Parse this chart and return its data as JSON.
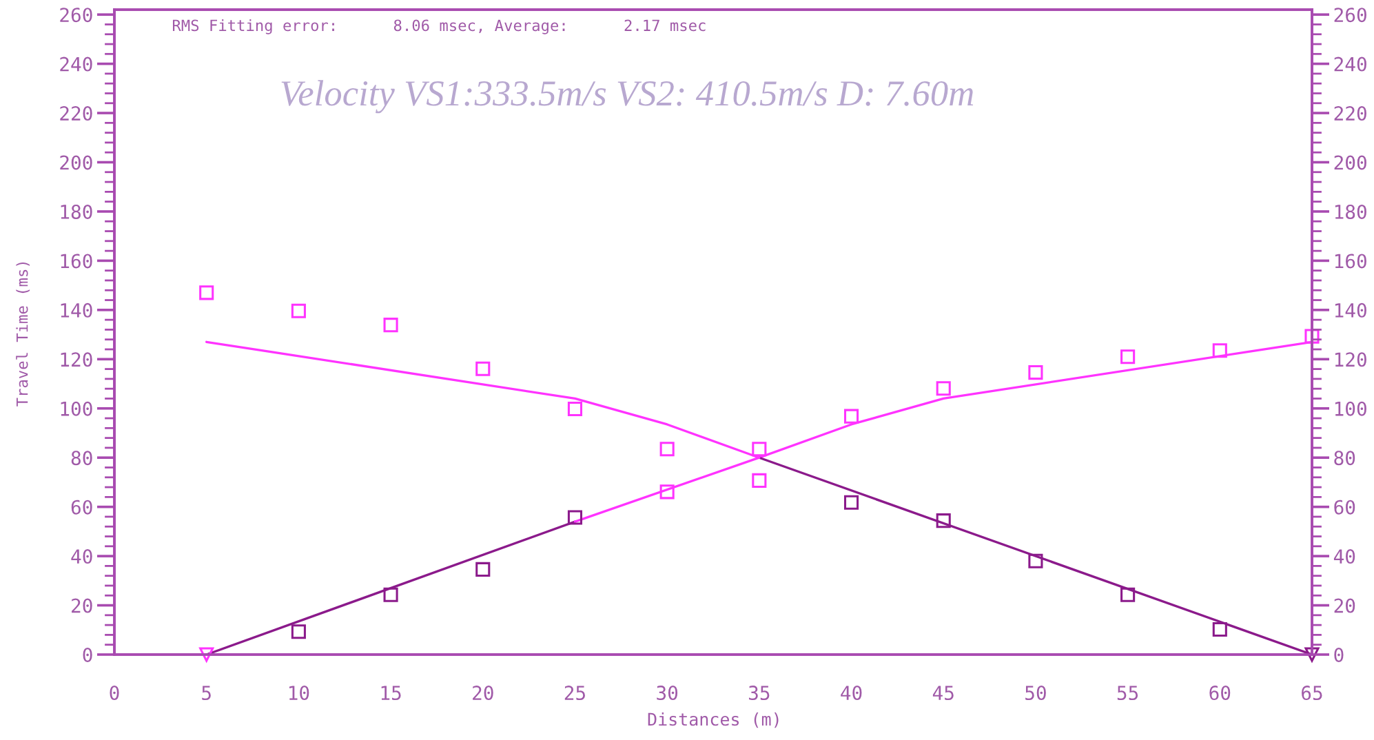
{
  "chart_data": {
    "type": "line",
    "title": "Velocity VS1:333.5m/s VS2: 410.5m/s D: 7.60m",
    "xlabel": "Distances (m)",
    "ylabel": "Travel Time (ms)",
    "annotations": [
      "RMS Fitting error:      8.06 msec, Average:      2.17 msec"
    ],
    "xlim": [
      0,
      65
    ],
    "xticks": [
      0,
      5,
      10,
      15,
      20,
      25,
      30,
      35,
      40,
      45,
      50,
      55,
      60,
      65
    ],
    "ylim": [
      0,
      262
    ],
    "yticks": [
      0,
      20,
      40,
      60,
      80,
      100,
      120,
      140,
      160,
      180,
      200,
      220,
      240,
      260
    ],
    "y2lim": [
      0,
      262
    ],
    "y2ticks": [
      0,
      20,
      40,
      60,
      80,
      100,
      120,
      140,
      160,
      180,
      200,
      220,
      240,
      260
    ],
    "grid": false,
    "line_style": "solid",
    "series": [
      {
        "color": "#8b1a8b",
        "x": [
          5,
          25
        ],
        "values": [
          0,
          54
        ]
      },
      {
        "color": "#ff33ff",
        "x": [
          25,
          35,
          40,
          45,
          65
        ],
        "values": [
          54,
          80,
          93.5,
          104,
          127
        ]
      },
      {
        "color": "#8b1a8b",
        "x": [
          65,
          35
        ],
        "values": [
          0,
          80
        ]
      },
      {
        "color": "#ff33ff",
        "x": [
          35,
          30,
          25,
          5
        ],
        "values": [
          80,
          93.5,
          104,
          127
        ]
      },
      {
        "type": "scatter",
        "marker": "square",
        "color": "#8b1a8b",
        "x": [
          10,
          15,
          20,
          25,
          40,
          45,
          50,
          55,
          60
        ],
        "values": [
          9.3,
          24.3,
          34.6,
          55.7,
          61.8,
          54.4,
          38,
          24.3,
          10.2
        ]
      },
      {
        "type": "scatter",
        "marker": "square",
        "color": "#ff33ff",
        "x": [
          30,
          35,
          40,
          45,
          50,
          55,
          60,
          65,
          5,
          10,
          15,
          20,
          25,
          30,
          35
        ],
        "values": [
          66.1,
          83.5,
          96.8,
          108.1,
          114.6,
          121,
          123.5,
          129.3,
          147,
          139.6,
          133.9,
          116.1,
          99.8,
          83.5,
          70.7
        ]
      },
      {
        "type": "scatter",
        "marker": "triangle",
        "colors": [
          "#ff33ff",
          "#8b1a8b"
        ],
        "x": [
          5,
          65
        ],
        "values": [
          0,
          0
        ]
      }
    ]
  }
}
